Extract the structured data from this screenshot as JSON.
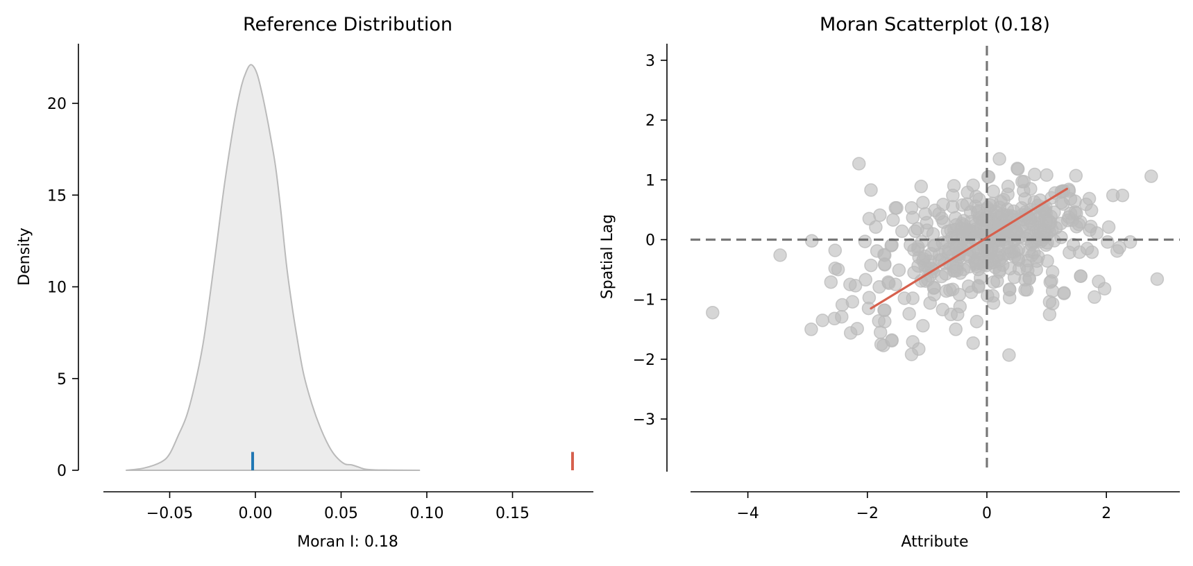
{
  "chart_data": [
    {
      "type": "area",
      "title": "Reference Distribution",
      "xlabel": "Moran I: 0.18",
      "ylabel": "Density",
      "xlim": [
        -0.0884,
        0.197
      ],
      "ylim": [
        0,
        23.25
      ],
      "grid": false,
      "x_ticks": [
        -0.05,
        0.0,
        0.05,
        0.1,
        0.15
      ],
      "x_tick_labels": [
        "−0.05",
        "0.00",
        "0.05",
        "0.10",
        "0.15"
      ],
      "y_ticks": [
        0,
        5,
        10,
        15,
        20
      ],
      "y_tick_labels": [
        "0",
        "5",
        "10",
        "15",
        "20"
      ],
      "density_curve": {
        "x": [
          -0.0756,
          -0.065,
          -0.055,
          -0.05,
          -0.045,
          -0.04,
          -0.035,
          -0.03,
          -0.024,
          -0.018,
          -0.012,
          -0.008,
          -0.005,
          -0.003,
          -0.001,
          0.001,
          0.003,
          0.006,
          0.009,
          0.012,
          0.015,
          0.018,
          0.021,
          0.024,
          0.028,
          0.033,
          0.038,
          0.043,
          0.047,
          0.052,
          0.056,
          0.06,
          0.064,
          0.07,
          0.08,
          0.096
        ],
        "y": [
          0,
          0.12,
          0.45,
          0.9,
          1.9,
          3.0,
          4.8,
          7.2,
          11.3,
          15.6,
          19.2,
          21.0,
          21.8,
          22.1,
          22.0,
          21.6,
          20.9,
          19.6,
          18.1,
          16.4,
          14.0,
          11.3,
          9.2,
          7.4,
          5.3,
          3.6,
          2.3,
          1.3,
          0.75,
          0.35,
          0.3,
          0.18,
          0.06,
          0.02,
          0.01,
          0
        ]
      },
      "fill_color": "#ececec",
      "line_color": "#bababa",
      "markers": [
        {
          "name": "expected-I",
          "x": -0.0016,
          "height": 1.0,
          "color": "#1f77b4"
        },
        {
          "name": "observed-I",
          "x": 0.185,
          "height": 1.0,
          "color": "#d6604d"
        }
      ]
    },
    {
      "type": "scatter",
      "title": "Moran Scatterplot (0.18)",
      "xlabel": "Attribute",
      "ylabel": "Spatial Lag",
      "xlim": [
        -4.97,
        3.22
      ],
      "ylim": [
        -3.88,
        3.28
      ],
      "grid": false,
      "x_ticks": [
        -4,
        -2,
        0,
        2
      ],
      "x_tick_labels": [
        "−4",
        "−2",
        "0",
        "2"
      ],
      "y_ticks": [
        -3,
        -2,
        -1,
        0,
        1,
        2,
        3
      ],
      "y_tick_labels": [
        "−3",
        "−2",
        "−1",
        "0",
        "1",
        "2",
        "3"
      ],
      "point_color": "#bababa",
      "point_alpha": 0.6,
      "reference_lines": {
        "x": 0,
        "y": 0,
        "color": "#555555",
        "style": "dashed"
      },
      "fit_line": {
        "x": [
          -1.94,
          1.34
        ],
        "y": [
          -1.15,
          0.85
        ],
        "color": "#d6604d"
      },
      "points": {
        "x": [
          -2.14,
          -1.94,
          -4.59,
          -3.46,
          -2.93,
          -2.94,
          -2.75,
          -2.61,
          -2.54,
          -2.54,
          -2.49,
          -2.55,
          -2.43,
          -2.42,
          -2.25,
          -2.29,
          -2.2,
          -2.28,
          -2.17,
          -2.03,
          -1.97,
          -1.79,
          -1.86,
          -2.04,
          -1.84,
          -1.94,
          -1.97,
          -1.98,
          -1.81,
          -1.78,
          -1.73,
          -1.59,
          -1.72,
          -1.71,
          -1.72,
          -1.6,
          -1.8,
          -1.64,
          -1.53,
          0.37,
          -0.23,
          -0.52,
          -0.17,
          -1.07,
          -1.24,
          -1.14,
          -1.26,
          -1.3,
          -1.24,
          -1.47,
          -1.59,
          -1.77,
          1.57,
          1.29,
          1.05,
          1.1,
          1.05,
          1.1,
          1.08,
          0.71,
          0.64,
          0.38,
          0.38,
          0.11,
          0.1,
          0.01,
          -0.45,
          -0.74,
          -0.6,
          -0.49,
          -0.95,
          -0.88,
          -0.68,
          -0.46,
          -0.26,
          -0.14,
          -0.89,
          -1.38,
          -1.71,
          -1.71,
          -1.65,
          -1.53,
          -1.22,
          -0.99,
          -1.1,
          -1.15,
          -1.03,
          -1.22,
          -1.59,
          -1.71,
          -1.71,
          0.21,
          0.51,
          0.8,
          1.0,
          1.49,
          2.75,
          0.02,
          0.62,
          0.73,
          1.37,
          1.14,
          2.11,
          2.27,
          1.75,
          1.66,
          2.04,
          1.72,
          1.84,
          2.02,
          2.4,
          2.22,
          2.18,
          1.76,
          1.55,
          1.68,
          1.57,
          1.87,
          1.97,
          1.8,
          2.85,
          1.29,
          1.1,
          1.06,
          0.64,
          0.71,
          0.67,
          0.38,
          0.46,
          0.21,
          0.11,
          -0.14,
          -1.1,
          -0.55,
          -0.23,
          0.03,
          0.52,
          0.59,
          -0.57,
          -0.18,
          -1.07,
          -1.51,
          -1.26,
          -1.24,
          -1.57,
          -0.87,
          -0.8,
          -1.03,
          -0.57,
          -1.42,
          -1.28
        ],
        "y": [
          1.27,
          0.83,
          -1.22,
          -0.26,
          -0.02,
          -1.5,
          -1.35,
          -0.71,
          -0.18,
          -0.48,
          -0.5,
          -1.32,
          -1.29,
          -1.09,
          -1.04,
          -0.75,
          -0.77,
          -1.56,
          -1.49,
          -0.67,
          0.35,
          0.41,
          0.21,
          -0.03,
          -0.19,
          -0.43,
          -0.97,
          -1.15,
          -1.36,
          -1.55,
          -1.77,
          -1.69,
          -1.18,
          -0.42,
          -0.25,
          -0.1,
          -0.79,
          -0.73,
          0.53,
          -1.93,
          -1.73,
          -1.5,
          -1.37,
          -1.44,
          -1.71,
          -1.83,
          -1.92,
          -1.24,
          -0.98,
          -0.51,
          -1.68,
          -1.75,
          -0.61,
          -0.9,
          -1.25,
          -1.07,
          -1.04,
          -0.86,
          -0.69,
          -0.65,
          -0.84,
          -0.97,
          -0.83,
          -1.06,
          -0.94,
          -0.94,
          -1.12,
          -1.17,
          -1.25,
          -1.25,
          -1.06,
          -0.92,
          -0.86,
          -0.92,
          -0.88,
          -0.77,
          -0.81,
          -0.98,
          -1.37,
          -1.18,
          -0.71,
          -0.75,
          -0.55,
          -0.67,
          -0.69,
          -0.44,
          -0.28,
          -0.17,
          -0.09,
          -0.26,
          -0.41,
          1.35,
          1.19,
          1.09,
          1.08,
          1.07,
          1.06,
          1.05,
          0.97,
          0.85,
          0.84,
          0.78,
          0.74,
          0.74,
          0.49,
          0.59,
          0.21,
          0.16,
          0.11,
          -0.04,
          -0.04,
          -0.13,
          -0.19,
          -0.21,
          -0.21,
          -0.15,
          -0.61,
          -0.7,
          -0.82,
          -0.96,
          -0.66,
          -0.89,
          -0.54,
          -0.71,
          -0.67,
          -0.65,
          -0.84,
          -0.84,
          -0.63,
          -0.54,
          -0.71,
          -0.79,
          0.89,
          0.9,
          0.91,
          1.05,
          1.18,
          0.97,
          0.74,
          0.72,
          0.62,
          0.53,
          0.53,
          0.37,
          0.33,
          0.49,
          0.43,
          0.43,
          0.55,
          0.14,
          -0.09
        ]
      },
      "dense_cluster": {
        "count": 380,
        "x_center": 0.15,
        "x_spread": 0.75,
        "y_center": 0.05,
        "y_spread": 0.38,
        "correlation": 0.45
      }
    }
  ]
}
